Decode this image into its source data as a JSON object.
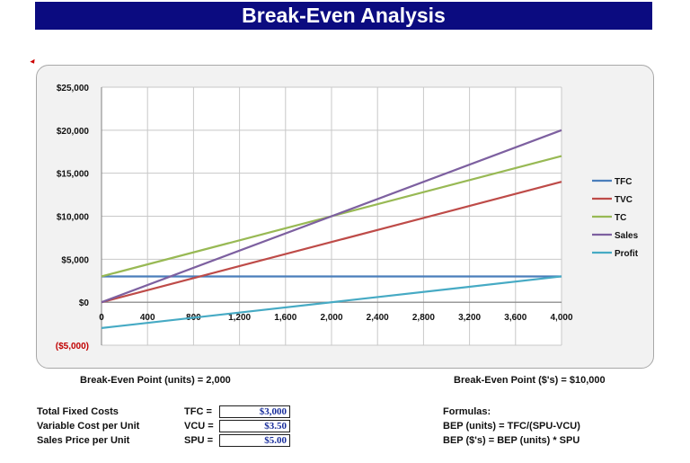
{
  "title": "Break-Even Analysis",
  "chart_data": {
    "type": "line",
    "x": [
      0,
      400,
      800,
      1200,
      1600,
      2000,
      2400,
      2800,
      3200,
      3600,
      4000
    ],
    "x_tick_labels": [
      "0",
      "400",
      "800",
      "1,200",
      "1,600",
      "2,000",
      "2,400",
      "2,800",
      "3,200",
      "3,600",
      "4,000"
    ],
    "xlim": [
      0,
      4000
    ],
    "ylim": [
      -5000,
      25000
    ],
    "y_ticks": [
      -5000,
      0,
      5000,
      10000,
      15000,
      20000,
      25000
    ],
    "y_tick_labels": [
      "($5,000)",
      "$0",
      "$5,000",
      "$10,000",
      "$15,000",
      "$20,000",
      "$25,000"
    ],
    "grid": true,
    "legend_position": "right",
    "series": [
      {
        "name": "TFC",
        "color": "#4a7ebb",
        "points": [
          [
            0,
            3000
          ],
          [
            4000,
            3000
          ]
        ]
      },
      {
        "name": "TVC",
        "color": "#be4b48",
        "points": [
          [
            0,
            0
          ],
          [
            4000,
            14000
          ]
        ]
      },
      {
        "name": "TC",
        "color": "#98b954",
        "points": [
          [
            0,
            3000
          ],
          [
            4000,
            17000
          ]
        ]
      },
      {
        "name": "Sales",
        "color": "#7d60a0",
        "points": [
          [
            0,
            0
          ],
          [
            4000,
            20000
          ]
        ]
      },
      {
        "name": "Profit",
        "color": "#46aac4",
        "points": [
          [
            0,
            -3000
          ],
          [
            4000,
            3000
          ]
        ]
      }
    ]
  },
  "bep_units_label": "Break-Even Point (units) = 2,000",
  "bep_dollars_label": "Break-Even Point ($'s) = $10,000",
  "inputs": [
    {
      "label": "Total Fixed Costs",
      "abbr": "TFC =",
      "value": "$3,000"
    },
    {
      "label": "Variable Cost per Unit",
      "abbr": "VCU =",
      "value": "$3.50"
    },
    {
      "label": "Sales Price per Unit",
      "abbr": "SPU =",
      "value": "$5.00"
    }
  ],
  "formulas": {
    "heading": "Formulas:",
    "lines": [
      "BEP (units) = TFC/(SPU-VCU)",
      "BEP ($'s) = BEP (units) * SPU"
    ]
  }
}
